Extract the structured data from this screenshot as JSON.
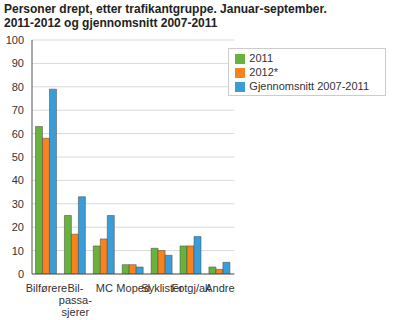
{
  "chart_data": {
    "type": "bar",
    "title": "Personer drept, etter trafikantgruppe. Januar-september. 2011-2012 og gjennomsnitt 2007-2011",
    "categories": [
      "Bilførere",
      "Bil-passa-sjerer",
      "MC",
      "Moped",
      "Syklister",
      "Fotgj/ak",
      "Andre"
    ],
    "series": [
      {
        "name": "2011",
        "color": "#6ab23e",
        "values": [
          63,
          25,
          12,
          4,
          11,
          12,
          3
        ]
      },
      {
        "name": "2012*",
        "color": "#f7821e",
        "values": [
          58,
          17,
          15,
          4,
          10,
          12,
          2
        ]
      },
      {
        "name": "Gjennomsnitt 2007-2011",
        "color": "#3a9dd8",
        "values": [
          79,
          33,
          25,
          3,
          8,
          16,
          5
        ]
      }
    ],
    "ylim": [
      0,
      100
    ],
    "yticks": [
      0,
      10,
      20,
      30,
      40,
      50,
      60,
      70,
      80,
      90,
      100
    ],
    "grid": true,
    "legend": "top-right"
  }
}
